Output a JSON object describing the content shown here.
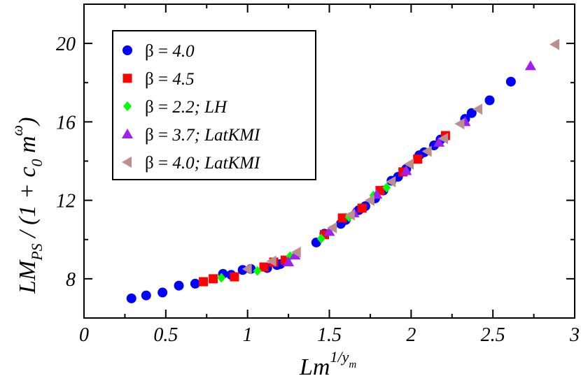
{
  "chart_data": {
    "type": "scatter",
    "xlim": [
      0,
      3
    ],
    "ylim": [
      6,
      22
    ],
    "x_ticks": [
      "0",
      "0.5",
      "1",
      "1.5",
      "2",
      "2.5",
      "3"
    ],
    "x_tick_values": [
      0,
      0.5,
      1,
      1.5,
      2,
      2.5,
      3
    ],
    "y_ticks": [
      "8",
      "12",
      "16",
      "20"
    ],
    "y_tick_values": [
      8,
      12,
      16,
      20
    ],
    "xlabel": {
      "base": "Lm",
      "sup": "1/y",
      "sub": "m"
    },
    "ylabel": {
      "l1": "LM",
      "l2": "PS",
      "l3": " / (1 + c",
      "l4": "0",
      "l5": " m",
      "l6": "ω",
      "l7": ")"
    },
    "legend_position": "top-left",
    "series": [
      {
        "name": "β = 4.0",
        "legend_plain": "β = ",
        "legend_italic": "4.0",
        "marker": "circle",
        "color": "#0000ff",
        "points": [
          [
            0.29,
            7.0
          ],
          [
            0.38,
            7.15
          ],
          [
            0.48,
            7.3
          ],
          [
            0.58,
            7.65
          ],
          [
            0.68,
            7.75
          ],
          [
            0.85,
            8.25
          ],
          [
            0.9,
            8.2
          ],
          [
            0.97,
            8.45
          ],
          [
            1.02,
            8.5
          ],
          [
            1.12,
            8.55
          ],
          [
            1.18,
            8.7
          ],
          [
            1.2,
            8.75
          ],
          [
            1.42,
            9.85
          ],
          [
            1.47,
            10.3
          ],
          [
            1.57,
            10.8
          ],
          [
            1.6,
            11.0
          ],
          [
            1.68,
            11.5
          ],
          [
            1.72,
            11.7
          ],
          [
            1.78,
            12.1
          ],
          [
            1.83,
            12.5
          ],
          [
            1.88,
            13.0
          ],
          [
            1.92,
            13.2
          ],
          [
            1.97,
            13.6
          ],
          [
            2.05,
            14.3
          ],
          [
            2.08,
            14.45
          ],
          [
            2.14,
            14.8
          ],
          [
            2.18,
            15.1
          ],
          [
            2.33,
            16.15
          ],
          [
            2.37,
            16.45
          ],
          [
            2.48,
            17.1
          ],
          [
            2.61,
            18.05
          ]
        ]
      },
      {
        "name": "β = 4.5",
        "legend_plain": "β = ",
        "legend_italic": "4.5",
        "marker": "square",
        "color": "#ff0000",
        "points": [
          [
            0.73,
            7.85
          ],
          [
            0.79,
            8.0
          ],
          [
            0.92,
            8.1
          ],
          [
            1.1,
            8.6
          ],
          [
            1.16,
            8.85
          ],
          [
            1.23,
            8.95
          ],
          [
            1.47,
            10.25
          ],
          [
            1.58,
            11.1
          ],
          [
            1.7,
            11.6
          ],
          [
            1.81,
            12.5
          ],
          [
            1.95,
            13.45
          ],
          [
            2.04,
            14.1
          ],
          [
            2.21,
            15.3
          ]
        ]
      },
      {
        "name": "β = 2.2; LH",
        "legend_plain": "β = ",
        "legend_italic": "2.2; LH",
        "marker": "diamond",
        "color": "#00ff00",
        "points": [
          [
            0.84,
            8.05
          ],
          [
            1.06,
            8.4
          ],
          [
            1.26,
            9.15
          ],
          [
            1.45,
            10.05
          ],
          [
            1.62,
            11.15
          ],
          [
            1.77,
            12.25
          ],
          [
            1.85,
            12.65
          ]
        ]
      },
      {
        "name": "β = 3.7; LatKMI",
        "legend_plain": "β = ",
        "legend_italic": "3.7; LatKMI",
        "marker": "triangle-up",
        "color": "#a020f0",
        "points": [
          [
            1.25,
            8.85
          ],
          [
            1.29,
            9.2
          ],
          [
            1.5,
            10.4
          ],
          [
            1.65,
            11.35
          ],
          [
            1.79,
            12.3
          ],
          [
            1.97,
            13.5
          ],
          [
            2.17,
            14.95
          ],
          [
            2.33,
            16.0
          ],
          [
            2.73,
            18.85
          ]
        ]
      },
      {
        "name": "β = 4.0; LatKMI",
        "legend_plain": "β = ",
        "legend_italic": "4.0; LatKMI",
        "marker": "triangle-left",
        "color": "#bc8f8f",
        "points": [
          [
            1.0,
            8.5
          ],
          [
            1.15,
            8.9
          ],
          [
            1.3,
            9.35
          ],
          [
            1.52,
            10.6
          ],
          [
            1.63,
            11.25
          ],
          [
            1.75,
            12.0
          ],
          [
            1.88,
            12.95
          ],
          [
            1.99,
            13.85
          ],
          [
            2.1,
            14.5
          ],
          [
            2.2,
            15.15
          ],
          [
            2.3,
            15.9
          ],
          [
            2.41,
            16.65
          ],
          [
            2.88,
            19.95
          ]
        ]
      }
    ]
  }
}
